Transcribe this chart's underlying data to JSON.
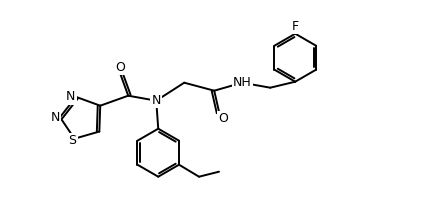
{
  "figsize": [
    4.25,
    2.13
  ],
  "dpi": 100,
  "bg_color": "#ffffff",
  "line_color": "#000000",
  "line_width": 1.4,
  "font_size": 9,
  "atoms": {
    "S": {
      "label": "S"
    },
    "N": {
      "label": "N"
    },
    "O": {
      "label": "O"
    },
    "F": {
      "label": "F"
    },
    "NH": {
      "label": "NH"
    }
  }
}
